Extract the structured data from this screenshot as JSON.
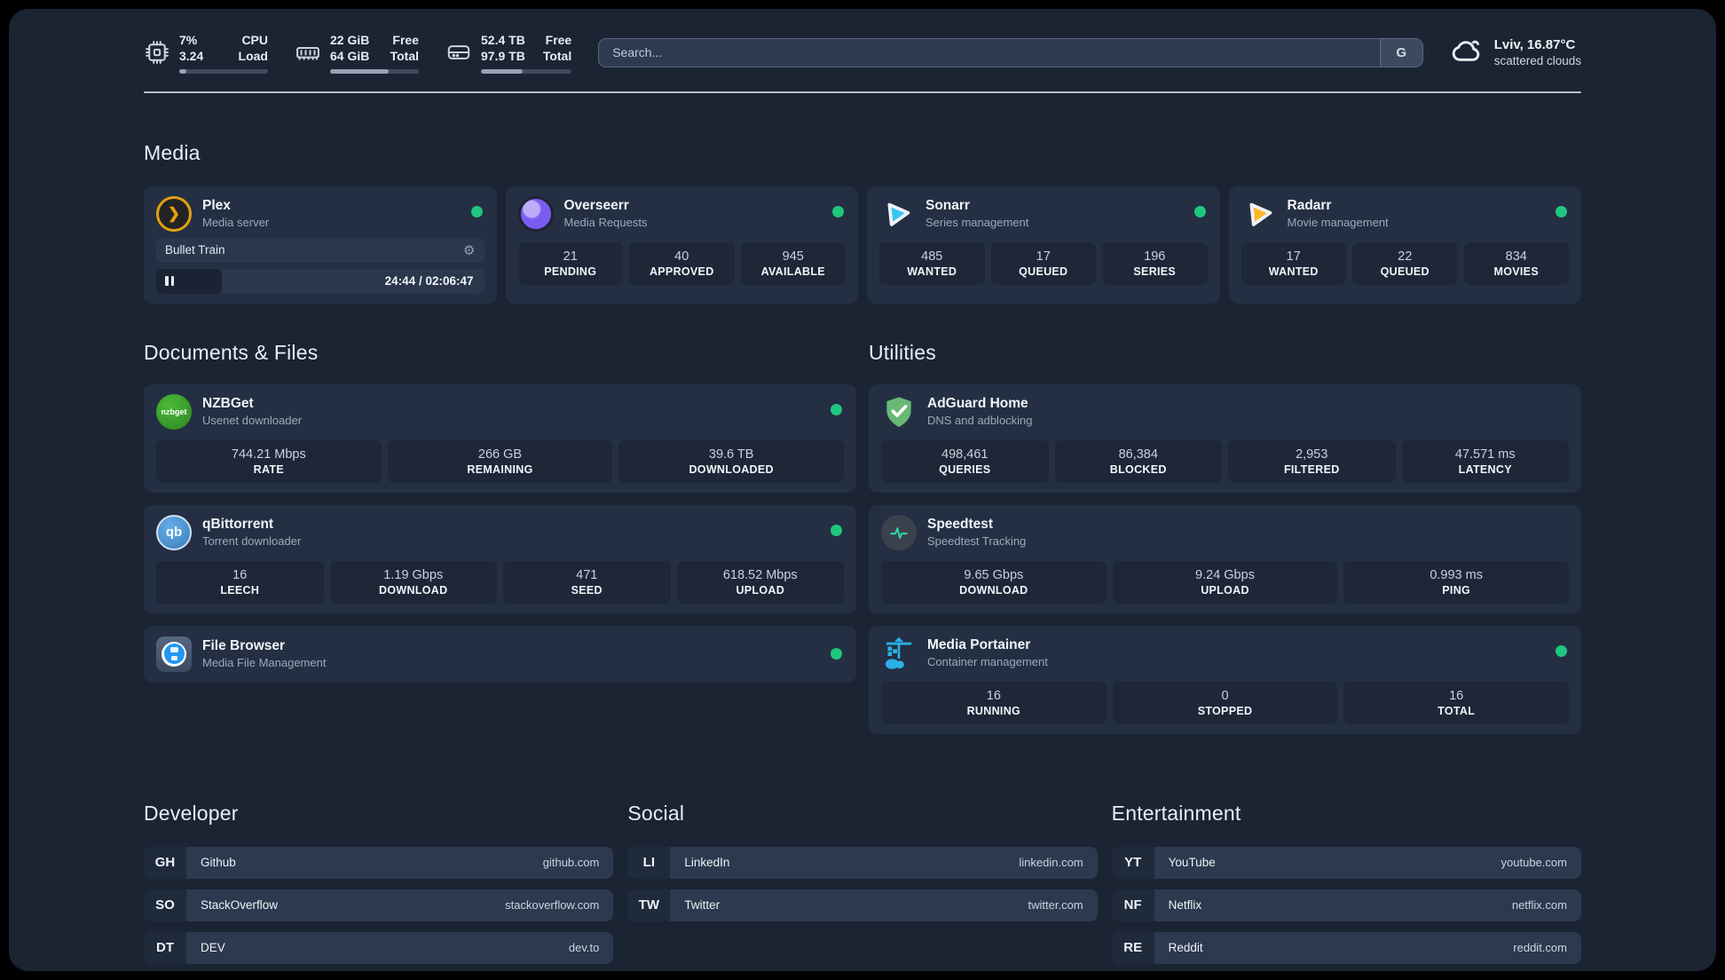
{
  "header": {
    "stats": [
      {
        "value_top": "7%",
        "value_bottom": "3.24",
        "label_top": "CPU",
        "label_bottom": "Load",
        "progress": 8
      },
      {
        "value_top": "22 GiB",
        "value_bottom": "64 GiB",
        "label_top": "Free",
        "label_bottom": "Total",
        "progress": 66
      },
      {
        "value_top": "52.4 TB",
        "value_bottom": "97.9 TB",
        "label_top": "Free",
        "label_bottom": "Total",
        "progress": 46
      }
    ],
    "search": {
      "placeholder": "Search...",
      "engine_label": "G"
    },
    "weather": {
      "location": "Lviv, 16.87°C",
      "condition": "scattered clouds"
    }
  },
  "media": {
    "title": "Media",
    "plex": {
      "name": "Plex",
      "desc": "Media server",
      "now_playing": "Bullet Train",
      "time": "24:44 / 02:06:47",
      "progress": 20
    },
    "overseerr": {
      "name": "Overseerr",
      "desc": "Media Requests",
      "stats": [
        {
          "value": "21",
          "label": "PENDING"
        },
        {
          "value": "40",
          "label": "APPROVED"
        },
        {
          "value": "945",
          "label": "AVAILABLE"
        }
      ]
    },
    "sonarr": {
      "name": "Sonarr",
      "desc": "Series management",
      "stats": [
        {
          "value": "485",
          "label": "WANTED"
        },
        {
          "value": "17",
          "label": "QUEUED"
        },
        {
          "value": "196",
          "label": "SERIES"
        }
      ]
    },
    "radarr": {
      "name": "Radarr",
      "desc": "Movie management",
      "stats": [
        {
          "value": "17",
          "label": "WANTED"
        },
        {
          "value": "22",
          "label": "QUEUED"
        },
        {
          "value": "834",
          "label": "MOVIES"
        }
      ]
    }
  },
  "documents": {
    "title": "Documents & Files",
    "nzbget": {
      "name": "NZBGet",
      "desc": "Usenet downloader",
      "icon_text": "nzbget",
      "stats": [
        {
          "value": "744.21 Mbps",
          "label": "RATE"
        },
        {
          "value": "266 GB",
          "label": "REMAINING"
        },
        {
          "value": "39.6 TB",
          "label": "DOWNLOADED"
        }
      ]
    },
    "qbittorrent": {
      "name": "qBittorrent",
      "desc": "Torrent downloader",
      "icon_text": "qb",
      "stats": [
        {
          "value": "16",
          "label": "LEECH"
        },
        {
          "value": "1.19 Gbps",
          "label": "DOWNLOAD"
        },
        {
          "value": "471",
          "label": "SEED"
        },
        {
          "value": "618.52 Mbps",
          "label": "UPLOAD"
        }
      ]
    },
    "filebrowser": {
      "name": "File Browser",
      "desc": "Media File Management"
    }
  },
  "utilities": {
    "title": "Utilities",
    "adguard": {
      "name": "AdGuard Home",
      "desc": "DNS and adblocking",
      "stats": [
        {
          "value": "498,461",
          "label": "QUERIES"
        },
        {
          "value": "86,384",
          "label": "BLOCKED"
        },
        {
          "value": "2,953",
          "label": "FILTERED"
        },
        {
          "value": "47.571 ms",
          "label": "LATENCY"
        }
      ]
    },
    "speedtest": {
      "name": "Speedtest",
      "desc": "Speedtest Tracking",
      "stats": [
        {
          "value": "9.65 Gbps",
          "label": "DOWNLOAD"
        },
        {
          "value": "9.24 Gbps",
          "label": "UPLOAD"
        },
        {
          "value": "0.993 ms",
          "label": "PING"
        }
      ]
    },
    "portainer": {
      "name": "Media Portainer",
      "desc": "Container management",
      "stats": [
        {
          "value": "16",
          "label": "RUNNING"
        },
        {
          "value": "0",
          "label": "STOPPED"
        },
        {
          "value": "16",
          "label": "TOTAL"
        }
      ]
    }
  },
  "bookmarks": {
    "developer": {
      "title": "Developer",
      "items": [
        {
          "abbr": "GH",
          "name": "Github",
          "url": "github.com"
        },
        {
          "abbr": "SO",
          "name": "StackOverflow",
          "url": "stackoverflow.com"
        },
        {
          "abbr": "DT",
          "name": "DEV",
          "url": "dev.to"
        }
      ]
    },
    "social": {
      "title": "Social",
      "items": [
        {
          "abbr": "LI",
          "name": "LinkedIn",
          "url": "linkedin.com"
        },
        {
          "abbr": "TW",
          "name": "Twitter",
          "url": "twitter.com"
        }
      ]
    },
    "entertainment": {
      "title": "Entertainment",
      "items": [
        {
          "abbr": "YT",
          "name": "YouTube",
          "url": "youtube.com"
        },
        {
          "abbr": "NF",
          "name": "Netflix",
          "url": "netflix.com"
        },
        {
          "abbr": "RE",
          "name": "Reddit",
          "url": "reddit.com"
        }
      ]
    }
  },
  "colors": {
    "accent_green": "#1fc77e",
    "plex_amber": "#e5a00d",
    "sonarr_blue": "#35c5f4",
    "radarr_yellow": "#fdb827"
  }
}
